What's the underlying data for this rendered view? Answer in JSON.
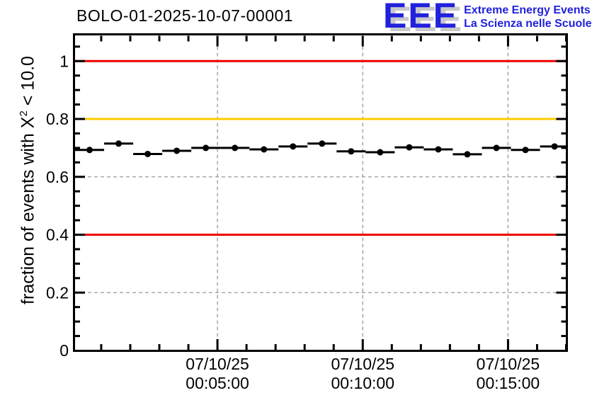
{
  "logo": {
    "acronym": "EEE",
    "line1": "Extreme Energy Events",
    "line2": "La Scienza nelle Scuole",
    "color": "#2121dd",
    "shadow_color": "#c8c8c8"
  },
  "chart_data": {
    "type": "scatter",
    "title": "BOLO-01-2025-10-07-00001",
    "ylabel": {
      "prefix": "fraction of events with X",
      "sup": "2",
      "suffix": " < 10.0"
    },
    "xlabel": "",
    "x_minutes": [
      0.6,
      1.6,
      2.6,
      3.6,
      4.6,
      5.6,
      6.6,
      7.6,
      8.6,
      9.6,
      10.6,
      11.6,
      12.6,
      13.6,
      14.6,
      15.6,
      16.6
    ],
    "values": [
      0.693,
      0.715,
      0.679,
      0.69,
      0.7,
      0.7,
      0.695,
      0.705,
      0.715,
      0.688,
      0.685,
      0.702,
      0.695,
      0.678,
      0.7,
      0.693,
      0.705
    ],
    "xerr_minutes": 0.5,
    "bin_width_minutes": 1,
    "xlim_minutes": [
      0.1,
      17.0
    ],
    "ylim": [
      0,
      1.09
    ],
    "yticks": [
      {
        "value": 0,
        "label": "0"
      },
      {
        "value": 0.2,
        "label": "0.2"
      },
      {
        "value": 0.4,
        "label": "0.4"
      },
      {
        "value": 0.6,
        "label": "0.6"
      },
      {
        "value": 0.8,
        "label": "0.8"
      },
      {
        "value": 1,
        "label": "1"
      }
    ],
    "y_minor_step": 0.05,
    "x_major_ticks": [
      {
        "minutes": 5,
        "date": "07/10/25",
        "time": "00:05:00"
      },
      {
        "minutes": 10,
        "date": "07/10/25",
        "time": "00:10:00"
      },
      {
        "minutes": 15,
        "date": "07/10/25",
        "time": "00:15:00"
      }
    ],
    "x_minor_step_minutes": 1,
    "grid": {
      "on": true,
      "color": "#999999",
      "dash": "5,4"
    },
    "thresholds": [
      {
        "value": 1.0,
        "color": "#ee0000"
      },
      {
        "value": 0.8,
        "color": "#ffcc00"
      },
      {
        "value": 0.4,
        "color": "#ee0000"
      }
    ],
    "marker_color": "#000000",
    "frame_color": "#000000",
    "legend": "none"
  }
}
